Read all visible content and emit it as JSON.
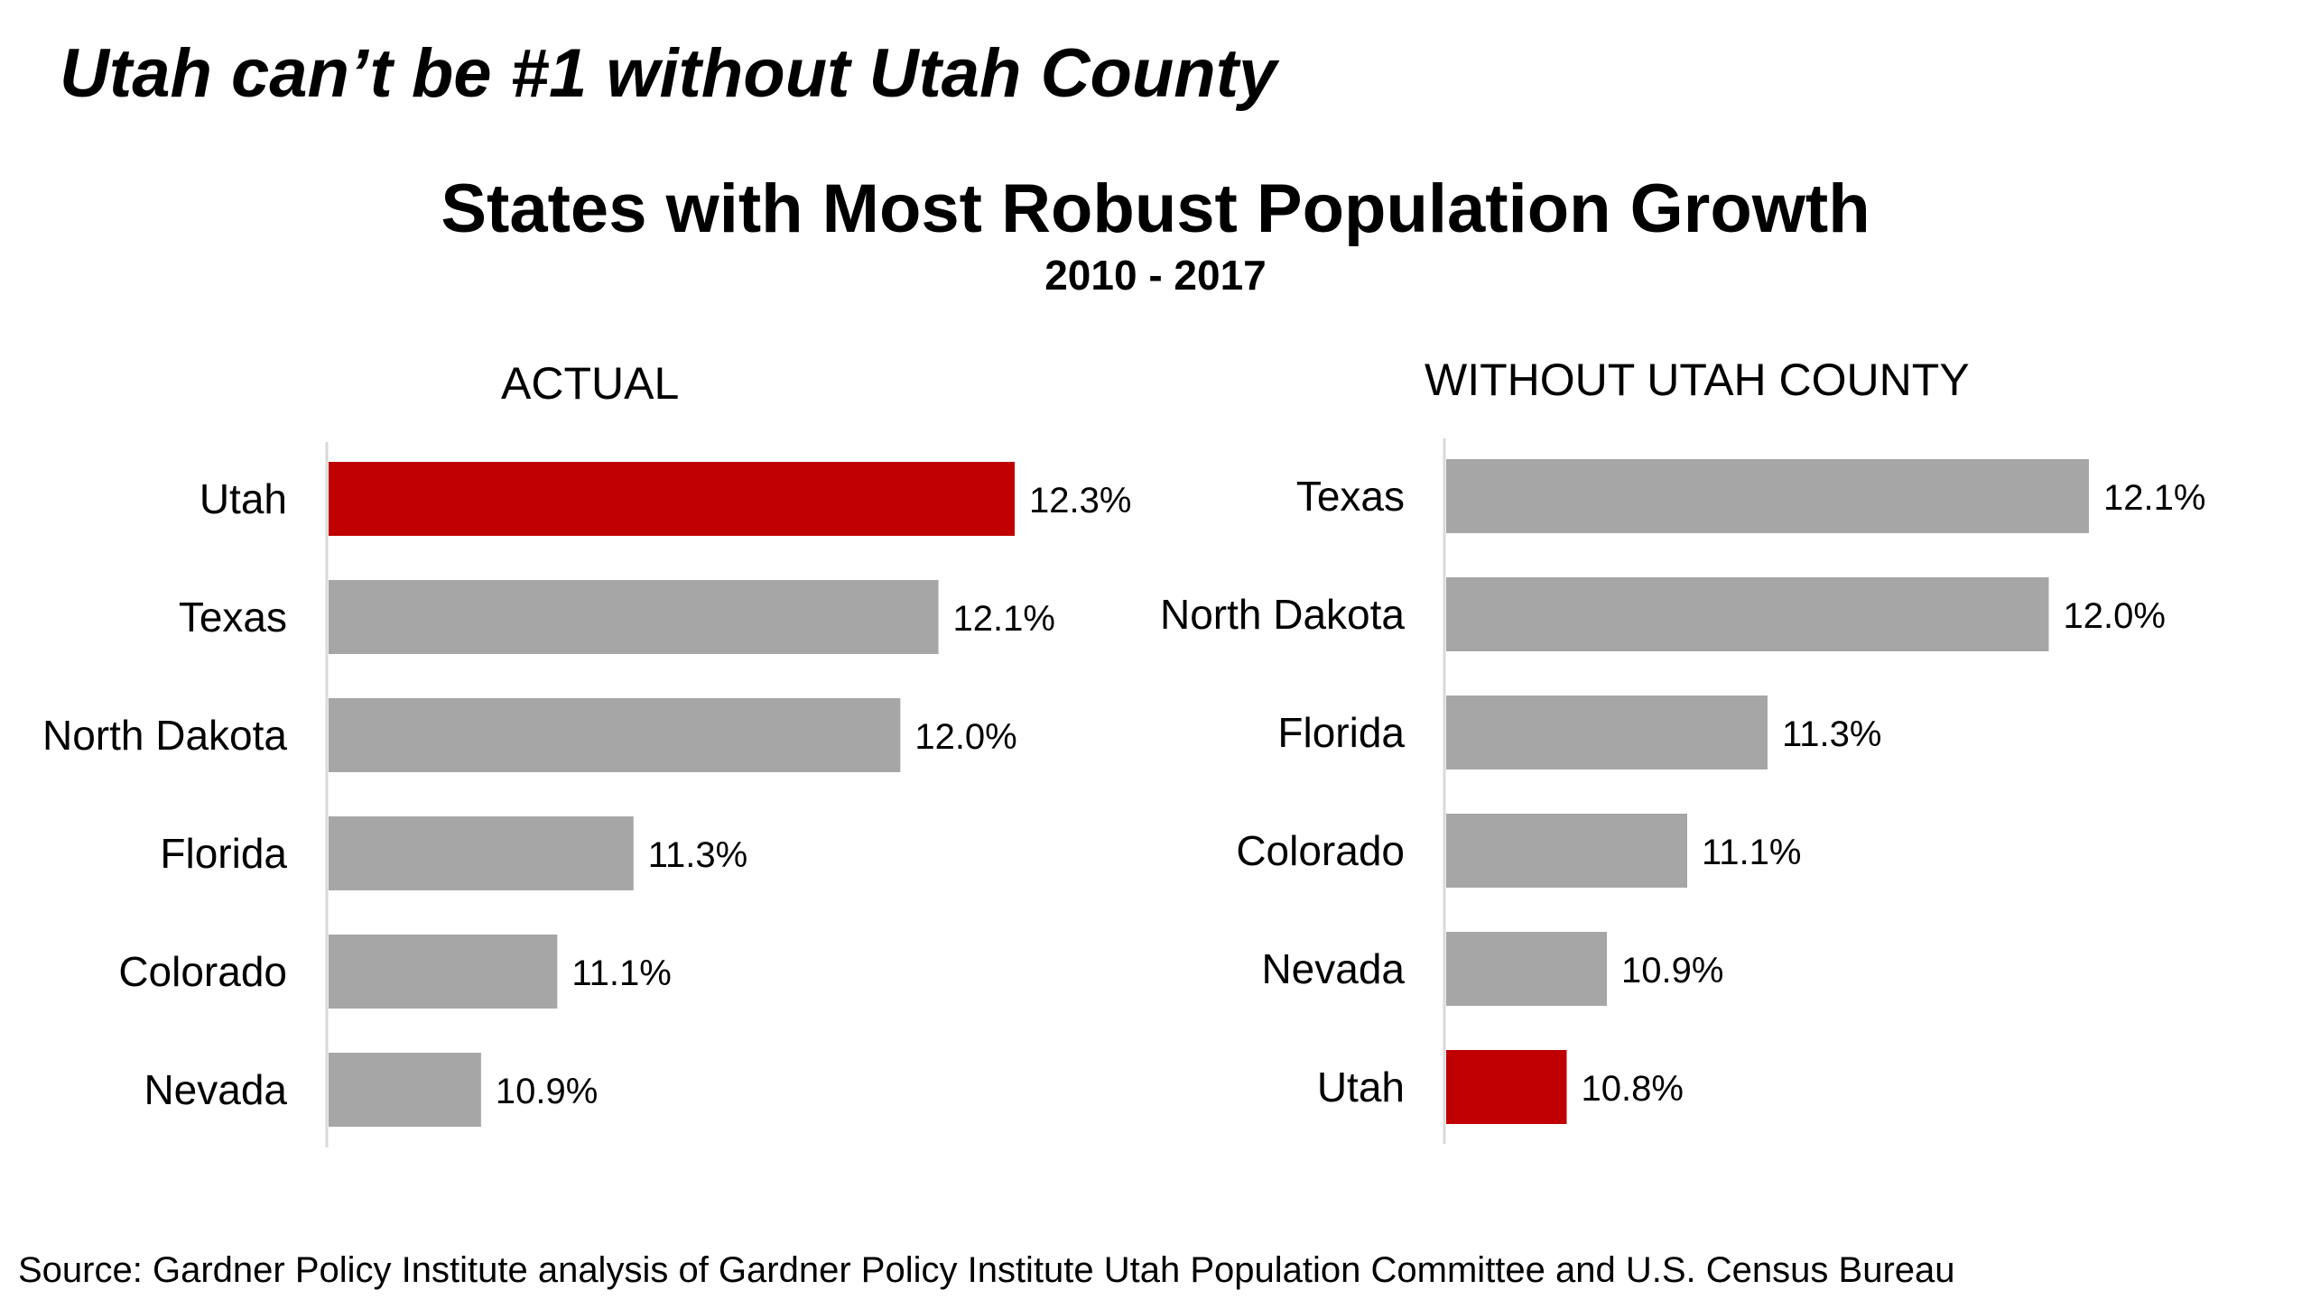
{
  "headline": "Utah can’t be #1 without Utah County",
  "title": "States with Most Robust Population Growth",
  "subtitle": "2010 - 2017",
  "source": "Source:  Gardner Policy Institute analysis of Gardner Policy Institute Utah Population Committee and U.S. Census Bureau",
  "colors": {
    "highlight": "#C00000",
    "bar": "#A6A6A6",
    "axis": "#D9D9D9"
  },
  "chart_data": [
    {
      "type": "bar",
      "orientation": "horizontal",
      "title": "ACTUAL",
      "categories": [
        "Utah",
        "Texas",
        "North Dakota",
        "Florida",
        "Colorado",
        "Nevada"
      ],
      "values": [
        12.3,
        12.1,
        12.0,
        11.3,
        11.1,
        10.9
      ],
      "value_labels": [
        "12.3%",
        "12.1%",
        "12.0%",
        "11.3%",
        "11.1%",
        "10.9%"
      ],
      "highlight": "Utah",
      "xlim": [
        10.5,
        12.3
      ]
    },
    {
      "type": "bar",
      "orientation": "horizontal",
      "title": "WITHOUT UTAH COUNTY",
      "categories": [
        "Texas",
        "North Dakota",
        "Florida",
        "Colorado",
        "Nevada",
        "Utah"
      ],
      "values": [
        12.1,
        12.0,
        11.3,
        11.1,
        10.9,
        10.8
      ],
      "value_labels": [
        "12.1%",
        "12.0%",
        "11.3%",
        "11.1%",
        "10.9%",
        "10.8%"
      ],
      "highlight": "Utah",
      "xlim": [
        10.5,
        12.1
      ]
    }
  ]
}
